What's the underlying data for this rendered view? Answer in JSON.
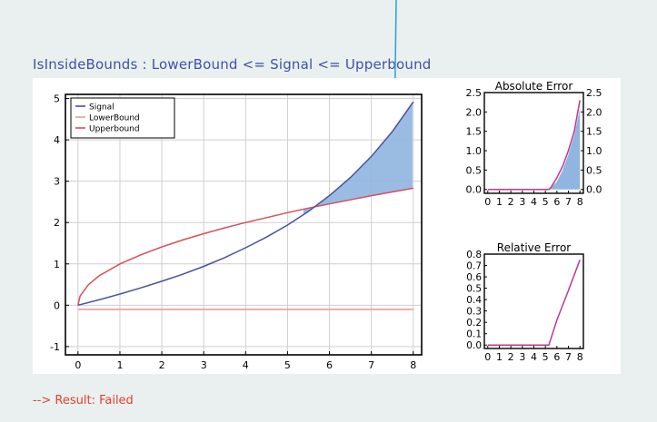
{
  "page": {
    "title": "IsInsideBounds : LowerBound <= Signal <= Upperbound",
    "result_text": "--> Result: Failed",
    "colors": {
      "background": "#e9f0ef",
      "title": "#3f52a8",
      "result": "#e0402f",
      "pointer_arrow": "#2b9fd8"
    }
  },
  "chart_data": [
    {
      "id": "main",
      "type": "line",
      "title": "",
      "xlim": [
        -0.3,
        8.2
      ],
      "ylim": [
        -1.2,
        5.1
      ],
      "xticks": [
        0,
        1,
        2,
        3,
        4,
        5,
        6,
        7,
        8
      ],
      "yticks": [
        -1,
        0,
        1,
        2,
        3,
        4,
        5
      ],
      "grid": true,
      "legend": {
        "position": "top-left",
        "entries": [
          "Signal",
          "LowerBound",
          "Upperbound"
        ]
      },
      "series": [
        {
          "name": "Signal",
          "color": "#4a4fa3",
          "x": [
            0,
            0.5,
            1,
            1.5,
            2,
            2.5,
            3,
            3.5,
            4,
            4.5,
            5,
            5.5,
            6,
            6.5,
            7,
            7.5,
            8
          ],
          "y": [
            0,
            0.13,
            0.27,
            0.42,
            0.58,
            0.75,
            0.94,
            1.15,
            1.39,
            1.65,
            1.94,
            2.27,
            2.65,
            3.09,
            3.6,
            4.2,
            4.92
          ]
        },
        {
          "name": "LowerBound",
          "color": "#f0999a",
          "x": [
            0,
            8
          ],
          "y": [
            -0.1,
            -0.1
          ]
        },
        {
          "name": "Upperbound",
          "color": "#d94c5a",
          "x": [
            0,
            0.05,
            0.25,
            0.5,
            1,
            1.5,
            2,
            2.5,
            3,
            3.5,
            4,
            4.5,
            5,
            5.5,
            6,
            6.5,
            7,
            7.5,
            8
          ],
          "y": [
            0,
            0.22,
            0.5,
            0.71,
            1.0,
            1.22,
            1.41,
            1.58,
            1.73,
            1.87,
            2.0,
            2.12,
            2.24,
            2.35,
            2.45,
            2.55,
            2.65,
            2.74,
            2.83
          ]
        }
      ],
      "fill": {
        "between": [
          "Signal",
          "Upperbound"
        ],
        "where": "Signal > Upperbound",
        "color": "#8fb5e0"
      }
    },
    {
      "id": "abs",
      "type": "area",
      "title": "Absolute Error",
      "xlim": [
        -0.3,
        8.3
      ],
      "ylim": [
        -0.1,
        2.5
      ],
      "xticks": [
        0,
        1,
        2,
        3,
        4,
        5,
        6,
        7,
        8
      ],
      "yticks": [
        0.0,
        0.5,
        1.0,
        1.5,
        2.0,
        2.5
      ],
      "ytick_labels": [
        "0.0",
        "0.5",
        "1.0",
        "1.5",
        "2.0",
        "2.5"
      ],
      "yticks_both_sides": true,
      "grid": false,
      "series": [
        {
          "name": "",
          "color": "#c1368a",
          "x": [
            0,
            5.3,
            5.5,
            6,
            6.5,
            7,
            7.5,
            8
          ],
          "y": [
            0,
            0,
            0.06,
            0.3,
            0.6,
            1.0,
            1.5,
            2.3
          ]
        }
      ],
      "area": {
        "color": "#8fb5e0",
        "x": [
          5.3,
          5.5,
          6,
          6.5,
          7,
          7.5,
          8
        ],
        "y": [
          0,
          0.06,
          0.2,
          0.5,
          0.9,
          1.4,
          2.1
        ]
      }
    },
    {
      "id": "rel",
      "type": "line",
      "title": "Relative Error",
      "xlim": [
        -0.3,
        8.3
      ],
      "ylim": [
        -0.03,
        0.8
      ],
      "xticks": [
        0,
        1,
        2,
        3,
        4,
        5,
        6,
        7,
        8
      ],
      "yticks": [
        0.0,
        0.1,
        0.2,
        0.3,
        0.4,
        0.5,
        0.6,
        0.7,
        0.8
      ],
      "ytick_labels": [
        "0.0",
        "0.1",
        "0.2",
        "0.3",
        "0.4",
        "0.5",
        "0.6",
        "0.7",
        "0.8"
      ],
      "grid": false,
      "series": [
        {
          "name": "",
          "color": "#c1368a",
          "x": [
            0,
            5.3,
            6,
            7,
            8
          ],
          "y": [
            0,
            0,
            0.22,
            0.48,
            0.75
          ]
        }
      ]
    }
  ]
}
